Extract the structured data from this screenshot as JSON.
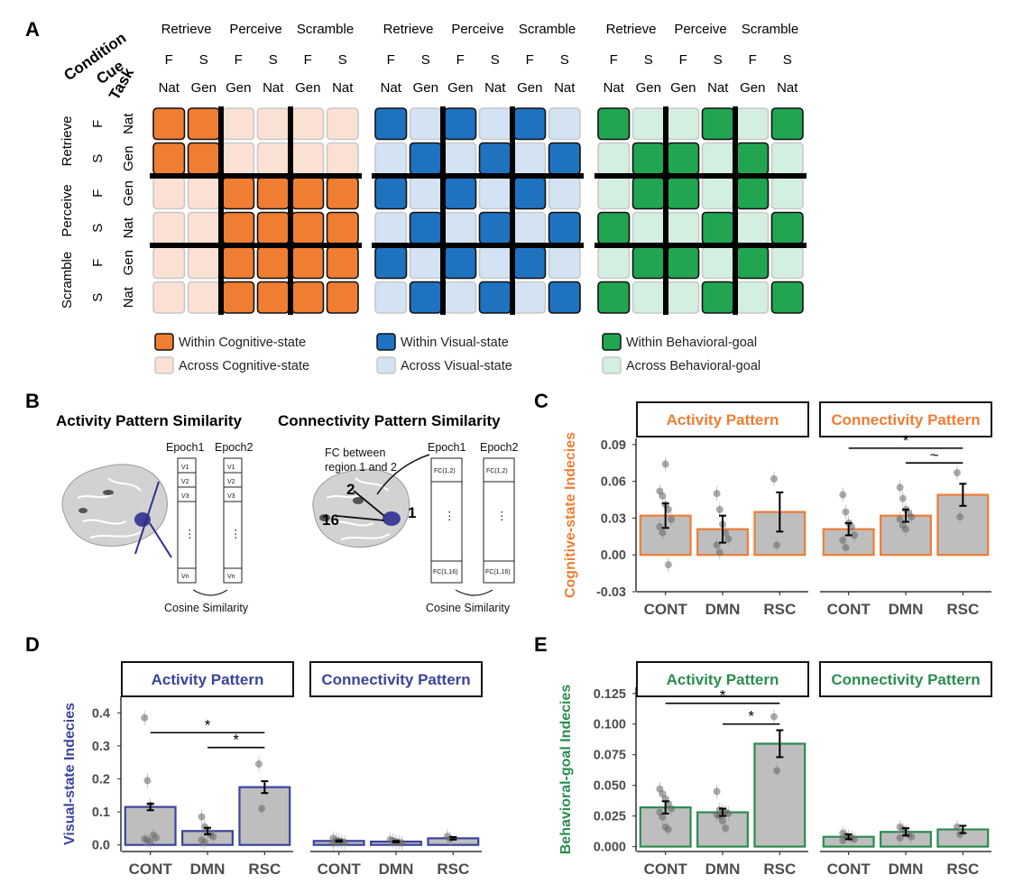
{
  "panels": {
    "A": "A",
    "B": "B",
    "C": "C",
    "D": "D",
    "E": "E"
  },
  "matrix": {
    "row_axis_labels": {
      "condition": "Condition",
      "cue": "Cue",
      "task": "Task"
    },
    "conditions": [
      "Retrieve",
      "Perceive",
      "Scramble"
    ],
    "cues": [
      "F",
      "S",
      "F",
      "S",
      "F",
      "S"
    ],
    "tasks": [
      "Nat",
      "Gen",
      "Gen",
      "Nat",
      "Gen",
      "Nat"
    ],
    "colors": {
      "orange": "#ef7d32",
      "orange_light": "#fbe1d4",
      "blue": "#1f72c0",
      "blue_light": "#d3e3f3",
      "green": "#21a551",
      "green_light": "#d3efdf"
    },
    "grids": [
      {
        "name": "cognitive",
        "pattern": [
          [
            1,
            1,
            0,
            0,
            0,
            0
          ],
          [
            1,
            1,
            0,
            0,
            0,
            0
          ],
          [
            0,
            0,
            1,
            1,
            1,
            1
          ],
          [
            0,
            0,
            1,
            1,
            1,
            1
          ],
          [
            0,
            0,
            1,
            1,
            1,
            1
          ],
          [
            0,
            0,
            1,
            1,
            1,
            1
          ]
        ]
      },
      {
        "name": "visual",
        "pattern": [
          [
            1,
            0,
            1,
            0,
            1,
            0
          ],
          [
            0,
            1,
            0,
            1,
            0,
            1
          ],
          [
            1,
            0,
            1,
            0,
            1,
            0
          ],
          [
            0,
            1,
            0,
            1,
            0,
            1
          ],
          [
            1,
            0,
            1,
            0,
            1,
            0
          ],
          [
            0,
            1,
            0,
            1,
            0,
            1
          ]
        ]
      },
      {
        "name": "behavioral",
        "pattern": [
          [
            1,
            0,
            0,
            1,
            0,
            1
          ],
          [
            0,
            1,
            1,
            0,
            1,
            0
          ],
          [
            0,
            1,
            1,
            0,
            1,
            0
          ],
          [
            1,
            0,
            0,
            1,
            0,
            1
          ],
          [
            0,
            1,
            1,
            0,
            1,
            0
          ],
          [
            1,
            0,
            0,
            1,
            0,
            1
          ]
        ]
      }
    ],
    "legend": {
      "within_cognitive": "Within Cognitive-state",
      "across_cognitive": "Across Cognitive-state",
      "within_visual": "Within Visual-state",
      "across_visual": "Across Visual-state",
      "within_behavioral": "Within Behavioral-goal",
      "across_behavioral": "Across Behavioral-goal"
    }
  },
  "schematic": {
    "activity_title": "Activity Pattern Similarity",
    "connectivity_title": "Connectivity Pattern Similarity",
    "epoch1": "Epoch1",
    "epoch2": "Epoch2",
    "activity_rows": [
      "V1",
      "V2",
      "V3",
      "Vn"
    ],
    "conn_rows": [
      "FC(1,2)",
      "FC(1,16)"
    ],
    "dots": "⋮",
    "cosine": "Cosine Similarity",
    "fc_note_line1": "FC between",
    "fc_note_line2": "region 1 and 2",
    "region_labels": [
      "2",
      "16",
      "1"
    ]
  },
  "chart_data": [
    {
      "id": "C",
      "type": "bar",
      "ylabel": "Cognitive-state Indecies",
      "ylabel_color": "#ef7d32",
      "bar_edge": "#ef7d32",
      "categories": [
        "CONT",
        "DMN",
        "RSC"
      ],
      "ylim": [
        -0.03,
        0.095
      ],
      "yticks": [
        "0.09",
        "0.06",
        "0.03",
        "0.00",
        "-0.03"
      ],
      "ytick_values": [
        0.09,
        0.06,
        0.03,
        0.0,
        -0.03
      ],
      "facets": [
        {
          "title": "Activity Pattern",
          "values": [
            0.032,
            0.021,
            0.035
          ],
          "errors": [
            0.01,
            0.011,
            0.016
          ],
          "points": [
            [
              0.052,
              0.048,
              0.041,
              0.037,
              0.029,
              0.023,
              0.018,
              0.074,
              -0.008
            ],
            [
              0.05,
              0.037,
              0.025,
              0.018,
              0.013,
              0.008,
              0.002
            ],
            [
              0.062,
              0.008
            ]
          ],
          "sig": []
        },
        {
          "title": "Connectivity Pattern",
          "values": [
            0.021,
            0.032,
            0.049
          ],
          "errors": [
            0.005,
            0.005,
            0.009
          ],
          "points": [
            [
              0.049,
              0.035,
              0.026,
              0.023,
              0.016,
              0.012,
              0.006
            ],
            [
              0.055,
              0.046,
              0.037,
              0.034,
              0.031,
              0.029,
              0.024,
              0.021
            ],
            [
              0.067,
              0.031
            ]
          ],
          "sig": [
            {
              "from": 0,
              "to": 2,
              "y": 0.087,
              "label": "*"
            },
            {
              "from": 1,
              "to": 2,
              "y": 0.075,
              "label": "~"
            }
          ]
        }
      ]
    },
    {
      "id": "D",
      "type": "bar",
      "ylabel": "Visual-state Indecies",
      "ylabel_color": "#3a449b",
      "bar_edge": "#3a449b",
      "categories": [
        "CONT",
        "DMN",
        "RSC"
      ],
      "ylim": [
        -0.02,
        0.45
      ],
      "yticks": [
        "0.4",
        "0.3",
        "0.2",
        "0.1",
        "0.0"
      ],
      "ytick_values": [
        0.4,
        0.3,
        0.2,
        0.1,
        0.0
      ],
      "facets": [
        {
          "title": "Activity Pattern",
          "values": [
            0.115,
            0.042,
            0.175
          ],
          "errors": [
            0.01,
            0.01,
            0.018
          ],
          "points": [
            [
              0.385,
              0.195,
              0.12,
              0.03,
              0.022,
              0.018,
              0.015,
              0.01
            ],
            [
              0.085,
              0.055,
              0.04,
              0.032,
              0.025,
              0.015,
              0.008
            ],
            [
              0.245,
              0.11
            ]
          ],
          "sig": [
            {
              "from": 0,
              "to": 2,
              "y": 0.34,
              "label": "*"
            },
            {
              "from": 1,
              "to": 2,
              "y": 0.295,
              "label": "*"
            }
          ]
        },
        {
          "title": "Connectivity Pattern",
          "values": [
            0.012,
            0.01,
            0.02
          ],
          "errors": [
            0.002,
            0.002,
            0.004
          ],
          "points": [
            [
              0.02,
              0.015,
              0.012,
              0.01,
              0.008,
              0.006
            ],
            [
              0.016,
              0.013,
              0.01,
              0.008,
              0.006
            ],
            [
              0.026,
              0.018
            ]
          ],
          "sig": []
        }
      ]
    },
    {
      "id": "E",
      "type": "bar",
      "ylabel": "Behavioral-goal Indecies",
      "ylabel_color": "#2a8d4f",
      "bar_edge": "#2a8d4f",
      "categories": [
        "CONT",
        "DMN",
        "RSC"
      ],
      "ylim": [
        -0.004,
        0.13
      ],
      "yticks": [
        "0.125",
        "0.100",
        "0.075",
        "0.050",
        "0.025",
        "0.000"
      ],
      "ytick_values": [
        0.125,
        0.1,
        0.075,
        0.05,
        0.025,
        0.0
      ],
      "facets": [
        {
          "title": "Activity Pattern",
          "values": [
            0.032,
            0.028,
            0.084
          ],
          "errors": [
            0.005,
            0.003,
            0.011
          ],
          "points": [
            [
              0.047,
              0.043,
              0.039,
              0.035,
              0.031,
              0.028,
              0.024,
              0.016,
              0.014
            ],
            [
              0.045,
              0.03,
              0.029,
              0.028,
              0.027,
              0.026,
              0.025,
              0.021,
              0.015
            ],
            [
              0.106,
              0.062
            ]
          ],
          "sig": [
            {
              "from": 0,
              "to": 2,
              "y": 0.117,
              "label": "*"
            },
            {
              "from": 1,
              "to": 2,
              "y": 0.1,
              "label": "*"
            }
          ]
        },
        {
          "title": "Connectivity Pattern",
          "values": [
            0.008,
            0.012,
            0.014
          ],
          "errors": [
            0.002,
            0.003,
            0.003
          ],
          "points": [
            [
              0.011,
              0.009,
              0.008,
              0.007,
              0.006,
              0.005
            ],
            [
              0.016,
              0.014,
              0.012,
              0.01,
              0.008,
              0.007
            ],
            [
              0.016,
              0.01
            ]
          ],
          "sig": []
        }
      ]
    }
  ]
}
